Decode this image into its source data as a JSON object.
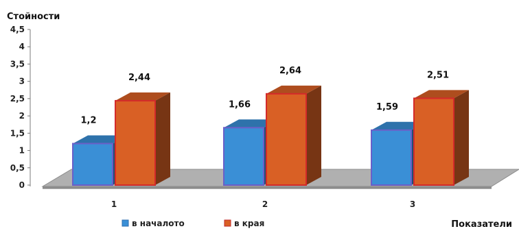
{
  "chart_data": {
    "type": "bar",
    "title": "",
    "ylabel": "Стойности",
    "xlabel": "Показатели",
    "categories": [
      "1",
      "2",
      "3"
    ],
    "ylim": [
      0,
      4.5
    ],
    "yticks": [
      "0",
      "0,5",
      "1",
      "1,5",
      "2",
      "2,5",
      "3",
      "3,5",
      "4",
      "4,5"
    ],
    "grid": false,
    "legend_position": "bottom",
    "series": [
      {
        "name": "в началото",
        "values": [
          1.2,
          1.66,
          1.59
        ],
        "labels": [
          "1,2",
          "1,66",
          "1,59"
        ],
        "color": "#3a8fd6"
      },
      {
        "name": "в края",
        "values": [
          2.44,
          2.64,
          2.51
        ],
        "labels": [
          "2,44",
          "2,64",
          "2,51"
        ],
        "color": "#d96025"
      }
    ]
  }
}
